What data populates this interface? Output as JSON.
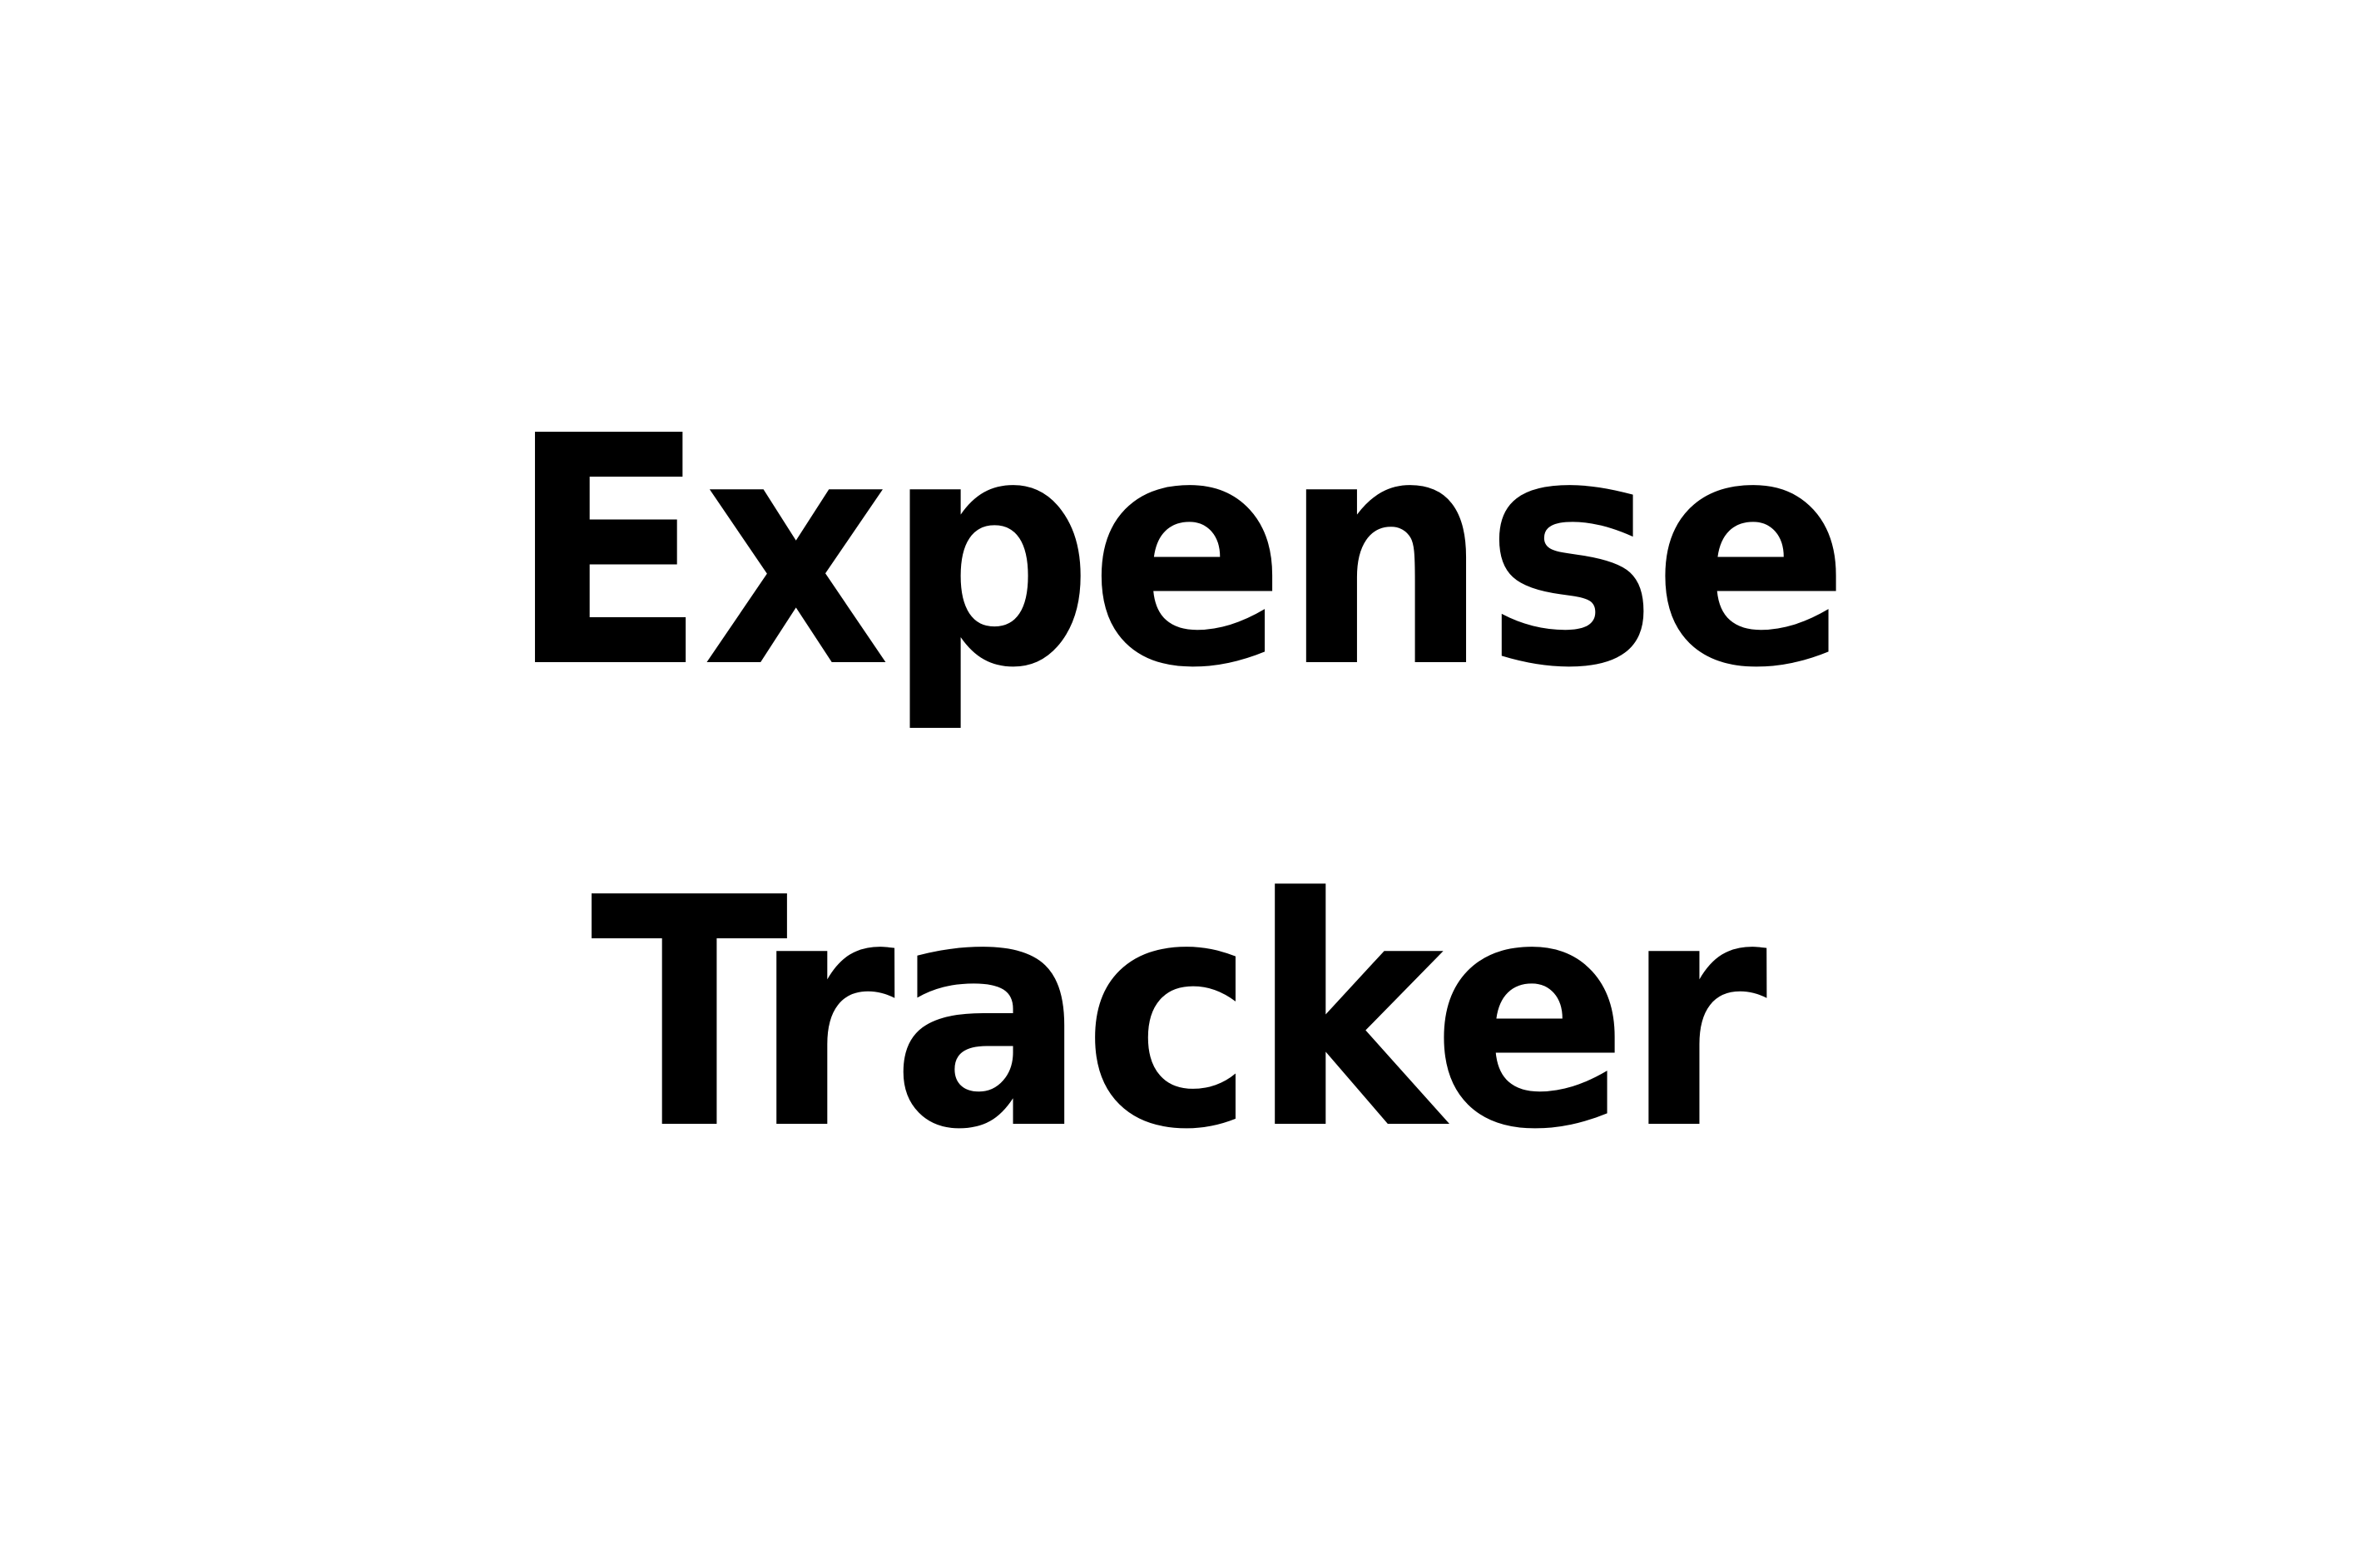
{
  "title": {
    "line1": "Expense",
    "line2": "Tracker"
  },
  "colors": {
    "background": "#ffffff",
    "text": "#000000"
  }
}
